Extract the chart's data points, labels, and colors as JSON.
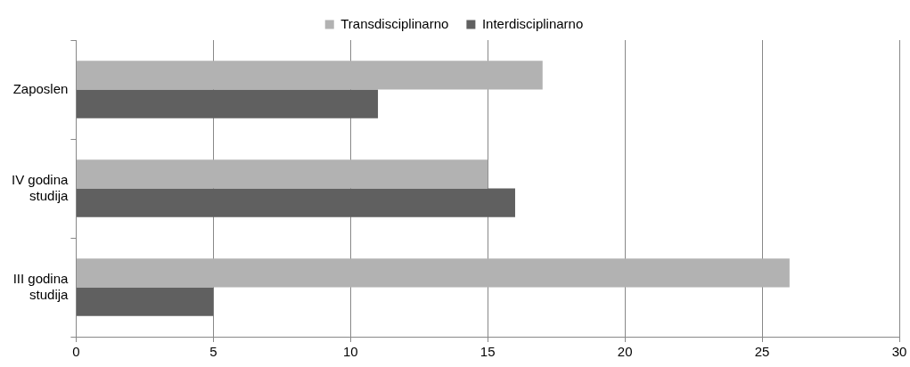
{
  "chart_data": {
    "type": "bar",
    "orientation": "horizontal",
    "categories": [
      "Zaposlen",
      "IV godina studija",
      "III godina studija"
    ],
    "series": [
      {
        "name": "Transdisciplinarno",
        "color": "#b2b2b2",
        "values": [
          17,
          15,
          26
        ]
      },
      {
        "name": "Interdisciplinarno",
        "color": "#606060",
        "values": [
          11,
          16,
          5
        ]
      }
    ],
    "xlim": [
      0,
      30
    ],
    "xticks": [
      0,
      5,
      10,
      15,
      20,
      25,
      30
    ],
    "grid": "x",
    "legend": "top"
  }
}
